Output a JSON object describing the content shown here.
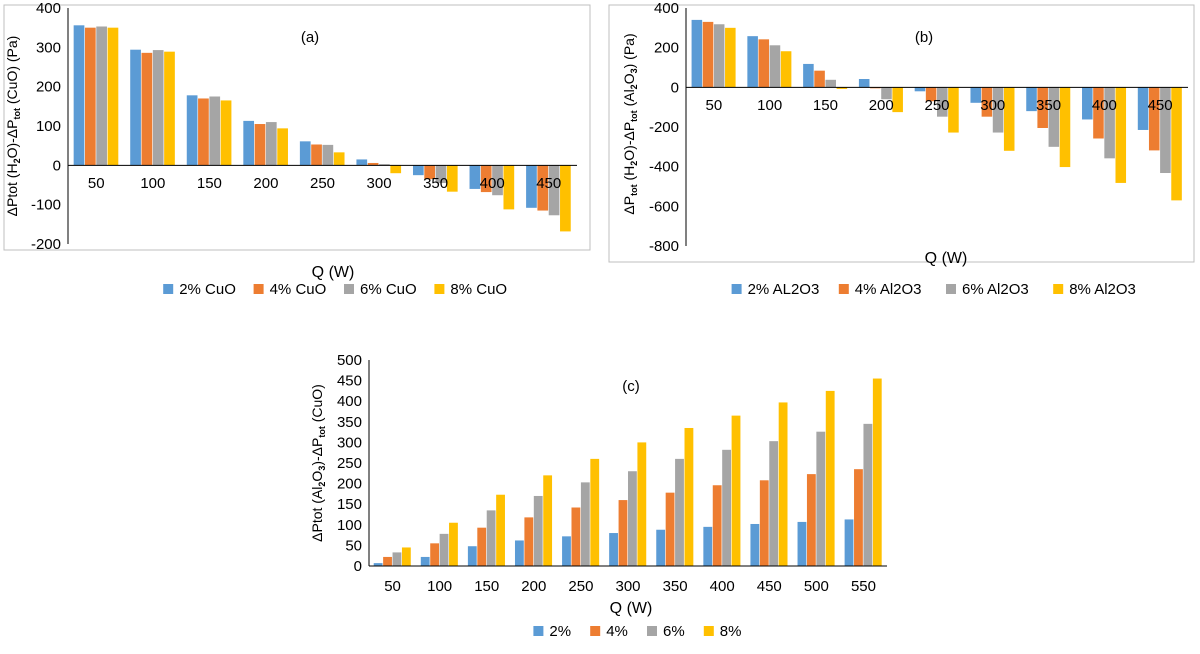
{
  "chart_data": [
    {
      "type": "bar",
      "panel_label": "(a)",
      "xlabel": "Q (W)",
      "ylabel_parts": [
        {
          "t": "ΔPtot (H",
          "s": "n"
        },
        {
          "t": "2",
          "s": "sub"
        },
        {
          "t": "O)-ΔP",
          "s": "n"
        },
        {
          "t": "tot",
          "s": "sub"
        },
        {
          "t": " (CuO) (Pa)",
          "s": "n"
        }
      ],
      "categories": [
        "50",
        "100",
        "150",
        "200",
        "250",
        "300",
        "350",
        "400",
        "450"
      ],
      "ylim": [
        -200,
        400
      ],
      "yticks": [
        -200,
        -100,
        0,
        100,
        200,
        300,
        400
      ],
      "legend_position": "bottom",
      "series": [
        {
          "name": "2% CuO",
          "color": "#5b9bd5",
          "values": [
            356,
            294,
            178,
            113,
            61,
            15,
            -25,
            -60,
            -108
          ]
        },
        {
          "name": "4% CuO",
          "color": "#ed7d31",
          "values": [
            350,
            286,
            170,
            105,
            53,
            6,
            -35,
            -68,
            -115
          ]
        },
        {
          "name": "6% CuO",
          "color": "#a5a5a5",
          "values": [
            353,
            293,
            175,
            110,
            52,
            3,
            -45,
            -76,
            -127
          ]
        },
        {
          "name": "8% CuO",
          "color": "#ffc000",
          "values": [
            350,
            289,
            165,
            94,
            33,
            -20,
            -67,
            -112,
            -168
          ]
        }
      ]
    },
    {
      "type": "bar",
      "panel_label": "(b)",
      "xlabel": "Q (W)",
      "ylabel_parts": [
        {
          "t": "ΔP",
          "s": "n"
        },
        {
          "t": "tot",
          "s": "sub"
        },
        {
          "t": " (H",
          "s": "n"
        },
        {
          "t": "2",
          "s": "sub"
        },
        {
          "t": "O)-ΔP",
          "s": "n"
        },
        {
          "t": "tot",
          "s": "sub"
        },
        {
          "t": " (Al",
          "s": "n"
        },
        {
          "t": "2",
          "s": "sub"
        },
        {
          "t": "O",
          "s": "n"
        },
        {
          "t": "3",
          "s": "sub"
        },
        {
          "t": ") (Pa)",
          "s": "n"
        }
      ],
      "categories": [
        "50",
        "100",
        "150",
        "200",
        "250",
        "300",
        "350",
        "400",
        "450"
      ],
      "ylim": [
        -800,
        400
      ],
      "yticks": [
        -800,
        -600,
        -400,
        -200,
        0,
        200,
        400
      ],
      "legend_position": "bottom",
      "series": [
        {
          "name": "2% AL2O3",
          "color": "#5b9bd5",
          "values": [
            340,
            258,
            118,
            42,
            -20,
            -78,
            -120,
            -162,
            -215
          ]
        },
        {
          "name": "4% Al2O3",
          "color": "#ed7d31",
          "values": [
            330,
            242,
            84,
            -5,
            -70,
            -148,
            -205,
            -258,
            -318
          ]
        },
        {
          "name": "6% Al2O3",
          "color": "#a5a5a5",
          "values": [
            318,
            212,
            38,
            -60,
            -148,
            -228,
            -300,
            -358,
            -432
          ]
        },
        {
          "name": "8% Al2O3",
          "color": "#ffc000",
          "values": [
            300,
            182,
            -8,
            -125,
            -228,
            -320,
            -402,
            -482,
            -570
          ]
        }
      ]
    },
    {
      "type": "bar",
      "panel_label": "(c)",
      "xlabel": "Q (W)",
      "ylabel_parts": [
        {
          "t": "ΔPtot (Al",
          "s": "n"
        },
        {
          "t": "2",
          "s": "sub"
        },
        {
          "t": "O",
          "s": "n"
        },
        {
          "t": "3",
          "s": "sub"
        },
        {
          "t": ")-ΔP",
          "s": "n"
        },
        {
          "t": "tot",
          "s": "sub"
        },
        {
          "t": " (CuO)",
          "s": "n"
        }
      ],
      "categories": [
        "50",
        "100",
        "150",
        "200",
        "250",
        "300",
        "350",
        "400",
        "450",
        "500",
        "550"
      ],
      "ylim": [
        0,
        500
      ],
      "yticks": [
        0,
        50,
        100,
        150,
        200,
        250,
        300,
        350,
        400,
        450,
        500
      ],
      "legend_position": "bottom",
      "series": [
        {
          "name": "2%",
          "color": "#5b9bd5",
          "values": [
            7,
            22,
            48,
            62,
            72,
            80,
            88,
            95,
            102,
            107,
            113
          ]
        },
        {
          "name": "4%",
          "color": "#ed7d31",
          "values": [
            22,
            55,
            93,
            118,
            142,
            160,
            178,
            196,
            208,
            223,
            235
          ]
        },
        {
          "name": "6%",
          "color": "#a5a5a5",
          "values": [
            33,
            78,
            135,
            170,
            203,
            230,
            260,
            282,
            303,
            326,
            345
          ]
        },
        {
          "name": "8%",
          "color": "#ffc000",
          "values": [
            45,
            105,
            173,
            220,
            260,
            300,
            335,
            365,
            397,
            425,
            455
          ]
        }
      ]
    }
  ]
}
